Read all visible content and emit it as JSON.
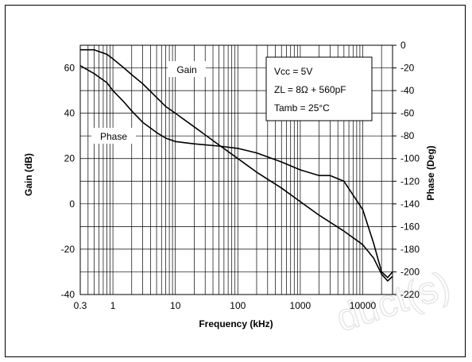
{
  "chart_data": {
    "type": "line",
    "xlabel": "Frequency (kHz)",
    "ylabel_left": "Gain (dB)",
    "ylabel_right": "Phase (Deg)",
    "x_scale": "log",
    "xlim": [
      0.3,
      30000
    ],
    "ylim_left": [
      -40,
      70
    ],
    "ylim_right": [
      -220,
      0
    ],
    "grid": true,
    "x_ticks": [
      {
        "v": 0.3,
        "label": "0.3"
      },
      {
        "v": 1,
        "label": "1"
      },
      {
        "v": 10,
        "label": "10"
      },
      {
        "v": 100,
        "label": "100"
      },
      {
        "v": 1000,
        "label": "1000"
      },
      {
        "v": 10000,
        "label": "10000"
      }
    ],
    "y_left_ticks": [
      {
        "v": 60,
        "label": "60"
      },
      {
        "v": 40,
        "label": "40"
      },
      {
        "v": 20,
        "label": "20"
      },
      {
        "v": 0,
        "label": "0"
      },
      {
        "v": -20,
        "label": "-20"
      },
      {
        "v": -40,
        "label": "-40"
      }
    ],
    "y_right_ticks": [
      {
        "v": 0,
        "label": "0"
      },
      {
        "v": -20,
        "label": "-20"
      },
      {
        "v": -40,
        "label": "-40"
      },
      {
        "v": -60,
        "label": "-60"
      },
      {
        "v": -80,
        "label": "-80"
      },
      {
        "v": -100,
        "label": "-100"
      },
      {
        "v": -120,
        "label": "-120"
      },
      {
        "v": -140,
        "label": "-140"
      },
      {
        "v": -160,
        "label": "-160"
      },
      {
        "v": -180,
        "label": "-180"
      },
      {
        "v": -200,
        "label": "-200"
      },
      {
        "v": -220,
        "label": "-220"
      }
    ],
    "series": [
      {
        "name": "Gain",
        "axis": "left",
        "x": [
          0.3,
          0.5,
          0.8,
          1,
          1.5,
          2,
          3,
          5,
          7,
          10,
          20,
          50,
          100,
          200,
          500,
          1000,
          2000,
          5000,
          10000,
          15000,
          20000,
          25000,
          30000
        ],
        "y": [
          68,
          68,
          66,
          64,
          60,
          57,
          53,
          47,
          43,
          40,
          34,
          26,
          20,
          14,
          7,
          1,
          -5,
          -12,
          -18,
          -24,
          -31,
          -34,
          -32
        ]
      },
      {
        "name": "Phase",
        "axis": "right",
        "x": [
          0.3,
          0.5,
          0.8,
          1,
          1.5,
          2,
          3,
          5,
          7,
          10,
          20,
          50,
          100,
          200,
          500,
          1000,
          2000,
          3000,
          5000,
          10000,
          15000,
          20000,
          25000,
          30000
        ],
        "y": [
          -18,
          -25,
          -33,
          -40,
          -50,
          -58,
          -68,
          -77,
          -82,
          -85,
          -87,
          -89,
          -91,
          -95,
          -103,
          -110,
          -115,
          -115,
          -120,
          -145,
          -175,
          -200,
          -205,
          -200
        ]
      }
    ],
    "annotations": {
      "gain_label": "Gain",
      "phase_label": "Phase",
      "conditions": [
        "Vcc = 5V",
        "ZL = 8Ω + 560pF",
        "Tamb = 25°C"
      ]
    }
  },
  "watermark": "duct(s)"
}
